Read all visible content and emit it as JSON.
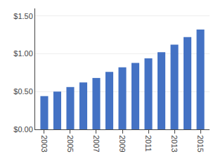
{
  "chart_data": {
    "type": "bar",
    "x": [
      2003,
      2004,
      2005,
      2006,
      2007,
      2008,
      2009,
      2010,
      2011,
      2012,
      2013,
      2014,
      2015
    ],
    "values": [
      0.44,
      0.5,
      0.56,
      0.62,
      0.68,
      0.76,
      0.82,
      0.88,
      0.94,
      1.02,
      1.12,
      1.22,
      1.32
    ],
    "color": "#4472C4",
    "xlim": [
      2002.3,
      2015.7
    ],
    "xticks": [
      2003,
      2005,
      2007,
      2009,
      2011,
      2013,
      2015
    ],
    "ylim": [
      0,
      1.6
    ],
    "yticks": [
      {
        "value": 0.0,
        "label": "$0.00"
      },
      {
        "value": 0.5,
        "label": "$0.50"
      },
      {
        "value": 1.0,
        "label": "$1.00"
      },
      {
        "value": 1.5,
        "label": "$1.50"
      }
    ],
    "grid": true
  }
}
